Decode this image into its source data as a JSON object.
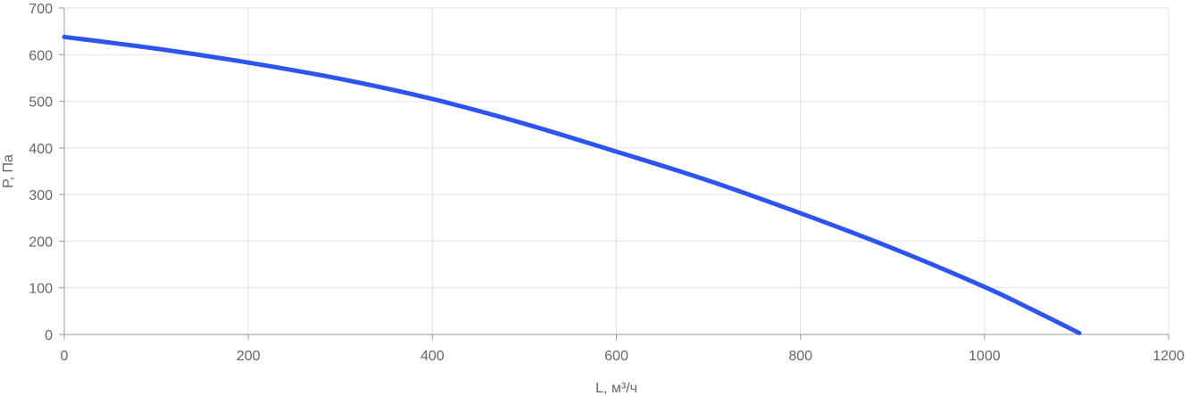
{
  "chart_data": {
    "type": "line",
    "title": "",
    "xlabel": "L, м³/ч",
    "ylabel": "P, Па",
    "xlim": [
      0,
      1200
    ],
    "ylim": [
      0,
      700
    ],
    "x_ticks": [
      0,
      200,
      400,
      600,
      800,
      1000,
      1200
    ],
    "y_ticks": [
      0,
      100,
      200,
      300,
      400,
      500,
      600,
      700
    ],
    "grid": true,
    "legend": "none",
    "series": [
      {
        "color": "#2d55ee",
        "x": [
          0,
          100,
          200,
          300,
          400,
          500,
          600,
          700,
          800,
          900,
          1000,
          1050,
          1103
        ],
        "y": [
          638,
          613,
          583,
          548,
          505,
          452,
          392,
          330,
          260,
          185,
          102,
          55,
          3
        ]
      }
    ]
  }
}
